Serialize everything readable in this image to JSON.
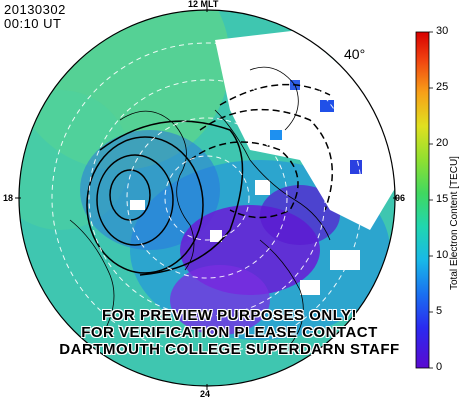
{
  "header": {
    "date": "20130302",
    "time": "00:10 UT"
  },
  "mlt_labels": {
    "top": "12 MLT",
    "left": "18",
    "right": "06",
    "bottom": "24"
  },
  "latitude_label": "40°",
  "colorbar": {
    "title": "Total Electron Content [TECU]",
    "ticks": [
      "30",
      "25",
      "20",
      "15",
      "10",
      "5",
      "0"
    ],
    "range": [
      0,
      30
    ]
  },
  "watermark": {
    "line1": "FOR PREVIEW PURPOSES ONLY!",
    "line2": "FOR VERIFICATION PLEASE CONTACT",
    "line3": "DARTMOUTH COLLEGE SUPERDARN STAFF"
  },
  "colors": {
    "background_map": "#3fc6b0",
    "low_tec": "#6a1bd6",
    "no_data": "#ffffff"
  }
}
